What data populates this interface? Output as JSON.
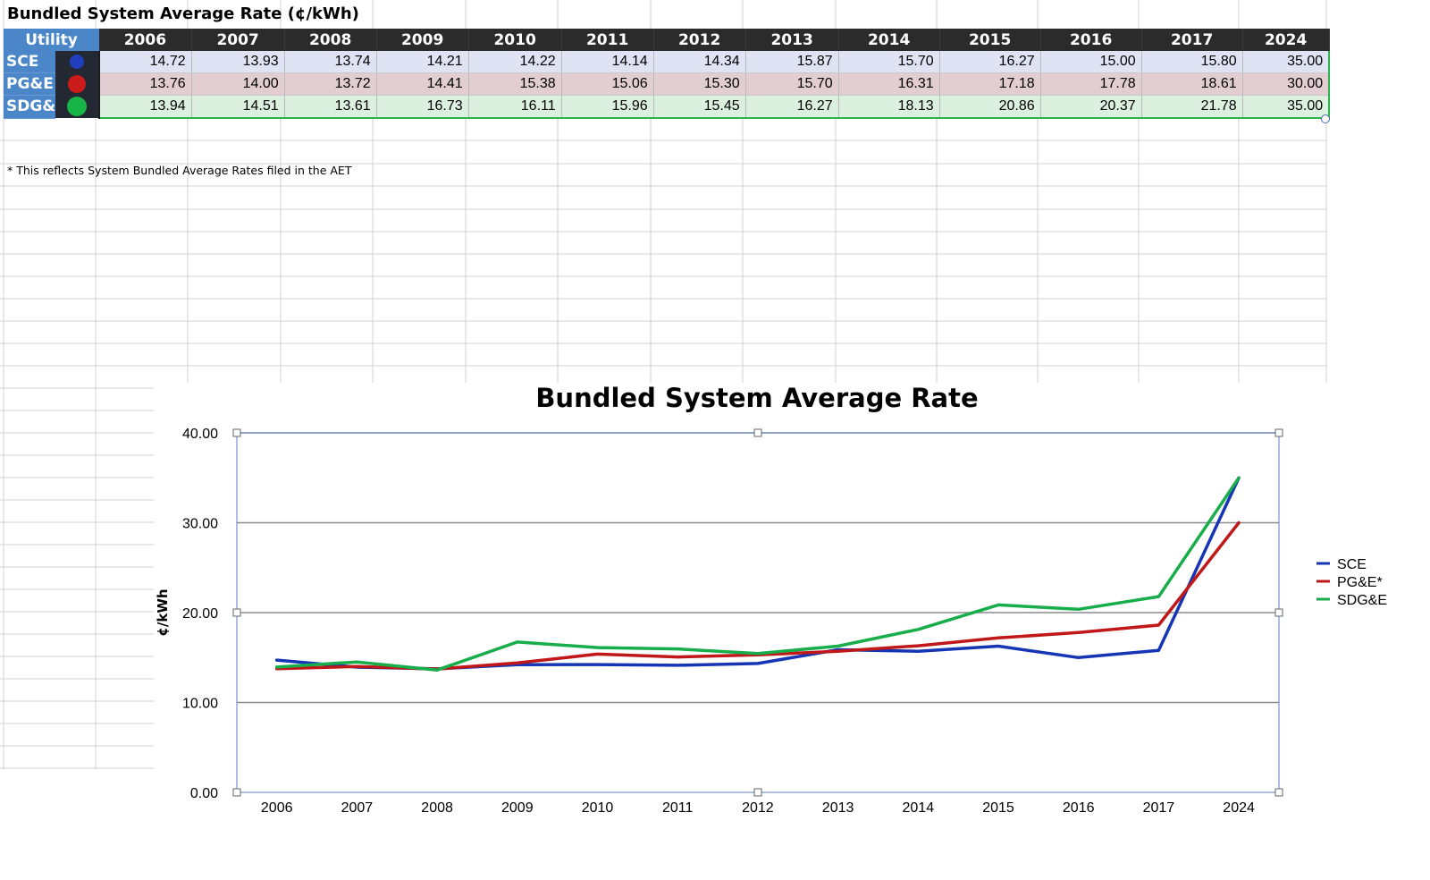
{
  "sheet": {
    "title": "Bundled System Average Rate (¢/kWh)",
    "footnote": "* This reflects System Bundled Average Rates filed in the AET"
  },
  "table": {
    "header_label": "Utility",
    "years": [
      "2006",
      "2007",
      "2008",
      "2009",
      "2010",
      "2011",
      "2012",
      "2013",
      "2014",
      "2015",
      "2016",
      "2017",
      "2024"
    ],
    "rows": [
      {
        "name": "SCE",
        "indicator_color": "#1f3fbf",
        "values": [
          "14.72",
          "13.93",
          "13.74",
          "14.21",
          "14.22",
          "14.14",
          "14.34",
          "15.87",
          "15.70",
          "16.27",
          "15.00",
          "15.80",
          "35.00"
        ]
      },
      {
        "name": "PG&E",
        "indicator_color": "#cc1b1b",
        "values": [
          "13.76",
          "14.00",
          "13.72",
          "14.41",
          "15.38",
          "15.06",
          "15.30",
          "15.70",
          "16.31",
          "17.18",
          "17.78",
          "18.61",
          "30.00"
        ]
      },
      {
        "name": "SDG&",
        "indicator_color": "#17b448",
        "values": [
          "13.94",
          "14.51",
          "13.61",
          "16.73",
          "16.11",
          "15.96",
          "15.45",
          "16.27",
          "18.13",
          "20.86",
          "20.37",
          "21.78",
          "35.00"
        ]
      }
    ]
  },
  "chart_data": {
    "type": "line",
    "title": "Bundled System Average Rate",
    "xlabel": "",
    "ylabel": "¢/kWh",
    "categories": [
      "2006",
      "2007",
      "2008",
      "2009",
      "2010",
      "2011",
      "2012",
      "2013",
      "2014",
      "2015",
      "2016",
      "2017",
      "2024"
    ],
    "ylim": [
      0,
      40
    ],
    "yticks": [
      "0.00",
      "10.00",
      "20.00",
      "30.00",
      "40.00"
    ],
    "grid": true,
    "legend_position": "right",
    "series": [
      {
        "name": "SCE",
        "color": "#1535b5",
        "values": [
          14.72,
          13.93,
          13.74,
          14.21,
          14.22,
          14.14,
          14.34,
          15.87,
          15.7,
          16.27,
          15.0,
          15.8,
          35.0
        ]
      },
      {
        "name": "PG&E*",
        "color": "#c01818",
        "values": [
          13.76,
          14.0,
          13.72,
          14.41,
          15.38,
          15.06,
          15.3,
          15.7,
          16.31,
          17.18,
          17.78,
          18.61,
          30.0
        ]
      },
      {
        "name": "SDG&E",
        "color": "#17ad4a",
        "values": [
          13.94,
          14.51,
          13.61,
          16.73,
          16.11,
          15.96,
          15.45,
          16.27,
          18.13,
          20.86,
          20.37,
          21.78,
          35.0
        ]
      }
    ]
  }
}
